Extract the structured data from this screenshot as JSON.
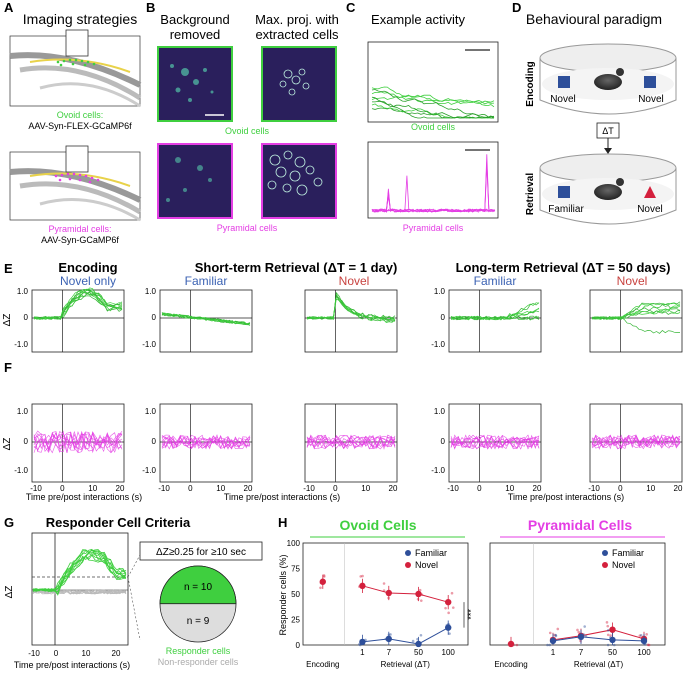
{
  "panels": {
    "A": {
      "letter": "A",
      "title": "Imaging strategies",
      "ovoid_label": "Ovoid cells:",
      "ovoid_virus": "AAV-Syn-FLEX-GCaMP6f",
      "pyr_label": "Pyramidal cells:",
      "pyr_virus": "AAV-Syn-GCaMP6f"
    },
    "B": {
      "letter": "B",
      "col1_line1": "Background",
      "col1_line2": "removed",
      "col2_line1": "Max. proj. with",
      "col2_line2": "extracted cells",
      "ovoid_caption": "Ovoid cells",
      "pyr_caption": "Pyramidal cells"
    },
    "C": {
      "letter": "C",
      "title": "Example activity",
      "ovoid_caption": "Ovoid cells",
      "pyr_caption": "Pyramidal cells"
    },
    "D": {
      "letter": "D",
      "title": "Behavioural paradigm",
      "encoding": "Encoding",
      "retrieval": "Retrieval",
      "novel1": "Novel",
      "novel2": "Novel",
      "delta": "ΔT",
      "familiar": "Familiar",
      "novel3": "Novel"
    },
    "E": {
      "letter": "E",
      "encoding_title": "Encoding",
      "encoding_sub": "Novel only",
      "short_title": "Short-term Retrieval (ΔT = 1 day)",
      "long_title": "Long-term Retrieval (ΔT = 50 days)",
      "familiar": "Familiar",
      "novel": "Novel",
      "ylabel": "ΔZ",
      "yticks": [
        "1.0",
        "0",
        "-1.0"
      ]
    },
    "F": {
      "letter": "F",
      "ylabel": "ΔZ",
      "yticks": [
        "1.0",
        "0",
        "-1.0"
      ],
      "xticks": [
        "-10",
        "0",
        "10",
        "20"
      ],
      "xlabel": "Time pre/post interactions (s)"
    },
    "G": {
      "letter": "G",
      "title": "Responder Cell Criteria",
      "criterion": "ΔZ≥0.25 for ≥10 sec",
      "n_resp": "n = 10",
      "n_nonresp": "n = 9",
      "resp_label": "Responder cells",
      "nonresp_label": "Non-responder cells",
      "ylabel": "ΔZ",
      "xticks": [
        "-10",
        "0",
        "10",
        "20"
      ],
      "xlabel": "Time pre/post interactions (s)"
    },
    "H": {
      "letter": "H",
      "ovoid_title": "Ovoid Cells",
      "pyr_title": "Pyramidal Cells",
      "ylabel": "Responder cells (%)",
      "yticks": [
        "100",
        "75",
        "50",
        "25",
        "0"
      ],
      "xticks": [
        "1",
        "7",
        "50",
        "100"
      ],
      "encoding_tick": "Encoding",
      "xlabel": "Retrieval (ΔT)",
      "legend_familiar": "Familiar",
      "legend_novel": "Novel",
      "signif": "***"
    }
  },
  "colors": {
    "ovoid": "#3fcf3f",
    "pyramidal": "#e43ee4",
    "familiar": "#2e4f9a",
    "novel": "#d4213d",
    "novel_text": "#c8423f",
    "familiar_text": "#3b62b3",
    "dark_panel": "#2a1f5c"
  },
  "chart_data": [
    {
      "type": "line",
      "name": "H-ovoid",
      "title": "Ovoid Cells",
      "ylabel": "Responder cells (%)",
      "xlabel": "Retrieval (ΔT)",
      "categories": [
        "Encoding",
        "1",
        "7",
        "50",
        "100"
      ],
      "ylim": [
        0,
        100
      ],
      "series": [
        {
          "name": "Novel",
          "values": [
            62,
            58,
            51,
            50,
            42
          ]
        },
        {
          "name": "Familiar",
          "values": [
            null,
            3,
            6,
            1,
            17
          ]
        }
      ]
    },
    {
      "type": "line",
      "name": "H-pyramidal",
      "title": "Pyramidal Cells",
      "ylabel": "Responder cells (%)",
      "xlabel": "Retrieval (ΔT)",
      "categories": [
        "Encoding",
        "1",
        "7",
        "50",
        "100"
      ],
      "ylim": [
        0,
        100
      ],
      "series": [
        {
          "name": "Novel",
          "values": [
            1,
            5,
            9,
            15,
            6
          ]
        },
        {
          "name": "Familiar",
          "values": [
            null,
            4,
            8,
            5,
            4
          ]
        }
      ]
    },
    {
      "type": "pie",
      "name": "G-responders",
      "categories": [
        "Responder cells",
        "Non-responder cells"
      ],
      "values": [
        10,
        9
      ]
    }
  ]
}
